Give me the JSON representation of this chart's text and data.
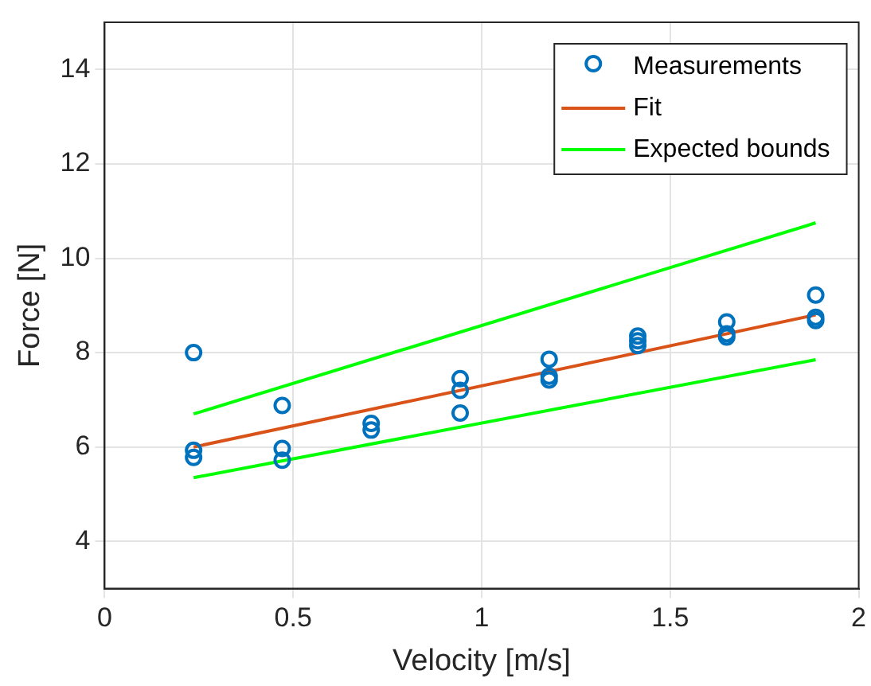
{
  "chart_data": {
    "type": "scatter",
    "xlabel": "Velocity [m/s]",
    "ylabel": "Force [N]",
    "xlim": [
      0,
      2
    ],
    "xticks": [
      0,
      0.5,
      1,
      1.5,
      2
    ],
    "ylim": [
      3,
      15
    ],
    "yticks": [
      4,
      6,
      8,
      10,
      12,
      14
    ],
    "grid": true,
    "legend": "top right",
    "series": [
      {
        "name": "Measurements",
        "marker": "circle",
        "color": "#0072bd",
        "x": [
          0.236,
          0.236,
          0.236,
          0.471,
          0.471,
          0.471,
          0.707,
          0.707,
          0.943,
          0.943,
          0.943,
          1.179,
          1.179,
          1.179,
          1.414,
          1.414,
          1.414,
          1.65,
          1.65,
          1.65,
          1.886,
          1.886,
          1.886
        ],
        "values": [
          8.0,
          5.93,
          5.78,
          6.88,
          5.97,
          5.72,
          6.5,
          6.36,
          7.45,
          7.2,
          6.72,
          7.86,
          7.5,
          7.42,
          8.35,
          8.25,
          8.15,
          8.65,
          8.4,
          8.33,
          9.22,
          8.75,
          8.68
        ]
      },
      {
        "name": "Fit",
        "type": "line",
        "marker": "none",
        "color": "#d95319",
        "x": [
          0.236,
          1.886
        ],
        "values": [
          6.0,
          8.8
        ]
      },
      {
        "name": "Expected bounds",
        "type": "line",
        "marker": "none",
        "color": "#00ff00",
        "x": [
          0.236,
          1.886
        ],
        "values": [
          6.7,
          10.75
        ]
      },
      {
        "type": "line",
        "marker": "none",
        "color": "#00ff00",
        "x": [
          0.236,
          1.886
        ],
        "values": [
          5.35,
          7.85
        ]
      }
    ]
  }
}
